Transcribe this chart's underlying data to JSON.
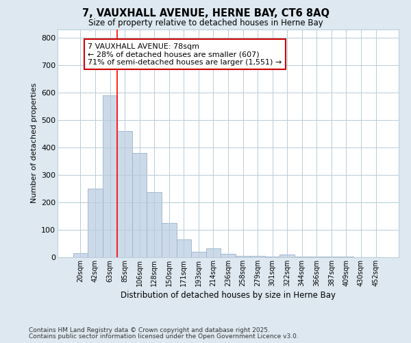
{
  "title1": "7, VAUXHALL AVENUE, HERNE BAY, CT6 8AQ",
  "title2": "Size of property relative to detached houses in Herne Bay",
  "xlabel": "Distribution of detached houses by size in Herne Bay",
  "ylabel": "Number of detached properties",
  "categories": [
    "20sqm",
    "42sqm",
    "63sqm",
    "85sqm",
    "106sqm",
    "128sqm",
    "150sqm",
    "171sqm",
    "193sqm",
    "214sqm",
    "236sqm",
    "258sqm",
    "279sqm",
    "301sqm",
    "322sqm",
    "344sqm",
    "366sqm",
    "387sqm",
    "409sqm",
    "430sqm",
    "452sqm"
  ],
  "values": [
    15,
    250,
    590,
    460,
    380,
    237,
    125,
    65,
    20,
    32,
    12,
    5,
    5,
    3,
    10,
    2,
    2,
    2,
    2,
    0,
    0
  ],
  "bar_color": "#ccd9e8",
  "bar_edge_color": "#99b3cc",
  "red_line_index": 3,
  "ylim": [
    0,
    830
  ],
  "yticks": [
    0,
    100,
    200,
    300,
    400,
    500,
    600,
    700,
    800
  ],
  "annotation_text": "7 VAUXHALL AVENUE: 78sqm\n← 28% of detached houses are smaller (607)\n71% of semi-detached houses are larger (1,551) →",
  "annotation_box_color": "#ffffff",
  "annotation_box_edge": "#cc0000",
  "footer1": "Contains HM Land Registry data © Crown copyright and database right 2025.",
  "footer2": "Contains public sector information licensed under the Open Government Licence v3.0.",
  "bg_color": "#dde8f0",
  "plot_bg_color": "#ffffff",
  "grid_color": "#b8ccd8"
}
